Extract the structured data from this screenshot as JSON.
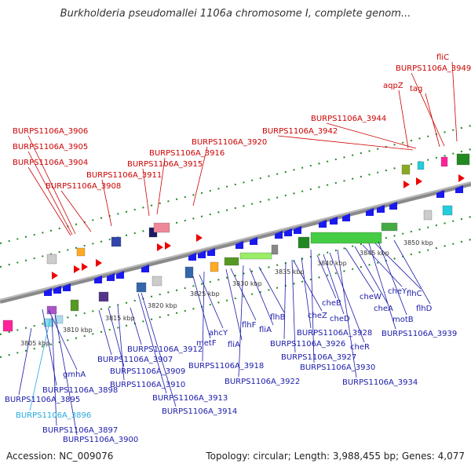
{
  "title": "Burkholderia pseudomallei 1106a chromosome I, complete genom...",
  "footer": {
    "accession": "Accession: NC_009076",
    "topology": "Topology: circular; Length: 3,988,455 bp; Genes: 4,077"
  },
  "colors": {
    "top_label": "#cc0000",
    "bottom_label": "#1a1aaa",
    "highlight_label": "#22aadd",
    "backbone": "#8a8a8a",
    "ticks": "#228822"
  },
  "scale_ticks": [
    "3805 kbp",
    "3810 kbp",
    "3815 kbp",
    "3820 kbp",
    "3825 kbp",
    "3830 kbp",
    "3835 kbp",
    "3840 kbp",
    "3845 kbp",
    "3850 kbp"
  ],
  "top_labels": [
    "BURPS1106A_3906",
    "BURPS1106A_3905",
    "BURPS1106A_3904",
    "BURPS1106A_3908",
    "BURPS1106A_3911",
    "BURPS1106A_3915",
    "BURPS1106A_3916",
    "BURPS1106A_3920",
    "BURPS1106A_3942",
    "BURPS1106A_3944",
    "aqpZ",
    "tag",
    "BURPS1106A_3949",
    "fliC"
  ],
  "bottom_labels": [
    "gmhA",
    "BURPS1106A_3898",
    "BURPS1106A_3895",
    "BURPS1106A_3896",
    "BURPS1106A_3897",
    "BURPS1106A_3900",
    "BURPS1106A_3907",
    "BURPS1106A_3909",
    "BURPS1106A_3910",
    "BURPS1106A_3912",
    "BURPS1106A_3913",
    "BURPS1106A_3914",
    "metF",
    "ahcY",
    "BURPS1106A_3918",
    "fliA",
    "flhF",
    "fliA",
    "flhB",
    "BURPS1106A_3922",
    "BURPS1106A_3926",
    "cheZ",
    "BURPS1106A_3927",
    "BURPS1106A_3928",
    "cheB",
    "cheD",
    "BURPS1106A_3930",
    "cheR",
    "cheW",
    "cheA",
    "cheY",
    "BURPS1106A_3934",
    "flhC",
    "flhD",
    "motB",
    "BURPS1106A_3939"
  ]
}
